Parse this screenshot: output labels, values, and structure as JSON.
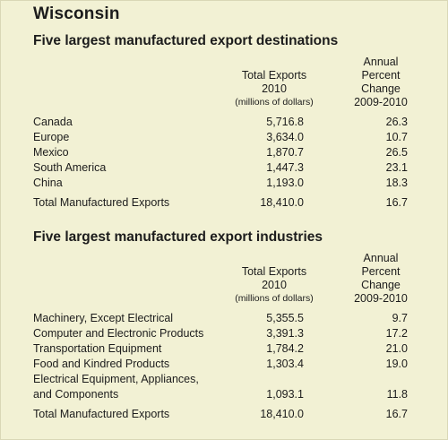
{
  "title": "Wisconsin",
  "destinations": {
    "heading": "Five largest manufactured export destinations",
    "col_exports": [
      "Total Exports",
      "2010",
      "(millions of dollars)"
    ],
    "col_change": [
      "Annual",
      "Percent",
      "Change",
      "2009-2010"
    ],
    "rows": [
      {
        "label": "Canada",
        "exports": "5,716.8",
        "change": "26.3"
      },
      {
        "label": "Europe",
        "exports": "3,634.0",
        "change": "10.7"
      },
      {
        "label": "Mexico",
        "exports": "1,870.7",
        "change": "26.5"
      },
      {
        "label": "South America",
        "exports": "1,447.3",
        "change": "23.1"
      },
      {
        "label": "China",
        "exports": "1,193.0",
        "change": "18.3"
      }
    ],
    "total": {
      "label": "Total Manufactured Exports",
      "exports": "18,410.0",
      "change": "16.7"
    }
  },
  "industries": {
    "heading": "Five largest manufactured export industries",
    "col_exports": [
      "Total Exports",
      "2010",
      "(millions of dollars)"
    ],
    "col_change": [
      "Annual",
      "Percent",
      "Change",
      "2009-2010"
    ],
    "rows": [
      {
        "label": "Machinery, Except Electrical",
        "exports": "5,355.5",
        "change": "9.7"
      },
      {
        "label": "Computer and Electronic Products",
        "exports": "3,391.3",
        "change": "17.2"
      },
      {
        "label": "Transportation Equipment",
        "exports": "1,784.2",
        "change": "21.0"
      },
      {
        "label": "Food and Kindred Products",
        "exports": "1,303.4",
        "change": "19.0"
      },
      {
        "label": "Electrical Equipment, Appliances,",
        "exports": "",
        "change": ""
      },
      {
        "label": "and Components",
        "exports": "1,093.1",
        "change": "11.8"
      }
    ],
    "total": {
      "label": "Total Manufactured Exports",
      "exports": "18,410.0",
      "change": "16.7"
    }
  }
}
